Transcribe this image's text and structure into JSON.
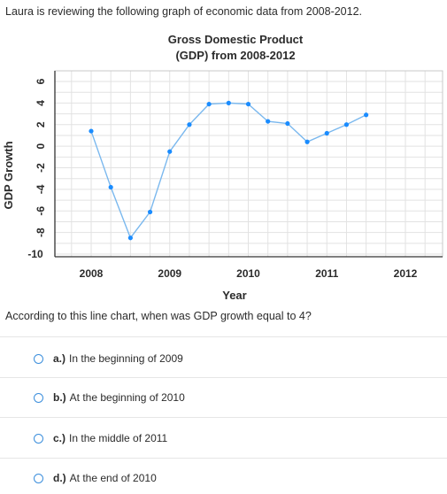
{
  "question": {
    "intro": "Laura is reviewing the following graph of economic data from 2008-2012.",
    "prompt": "According to this line chart, when was GDP growth equal to 4?"
  },
  "chart_data": {
    "type": "line",
    "title_line1": "Gross Domestic Product",
    "title_line2": "(GDP) from 2008-2012",
    "xlabel": "Year",
    "ylabel": "GDP Growth",
    "x_ticks": [
      "2008",
      "2009",
      "2010",
      "2011",
      "2012"
    ],
    "y_ticks": [
      "6",
      "4",
      "2",
      "0",
      "-2",
      "-4",
      "-6",
      "-8",
      "-10"
    ],
    "ylim": [
      -10,
      6.5
    ],
    "xlim": [
      2007.75,
      2012.25
    ],
    "grid": true,
    "line_color": "#7ab8ee",
    "point_color": "#1a8cff",
    "series": [
      {
        "x": [
          2008,
          2008.25,
          2008.5,
          2008.75,
          2009,
          2009.25,
          2009.5,
          2009.75,
          2010,
          2010.25,
          2010.5,
          2010.75,
          2011,
          2011.25,
          2011.5,
          2011.75
        ],
        "y": [
          1.4,
          -3.8,
          -8.5,
          -6.1,
          -0.5,
          2.0,
          3.9,
          4.0,
          3.9,
          2.3,
          2.1,
          0.4,
          1.2,
          2.0,
          2.9,
          null
        ]
      }
    ]
  },
  "options": [
    {
      "letter": "a.)",
      "text": "In the beginning of 2009"
    },
    {
      "letter": "b.)",
      "text": "At the beginning of 2010"
    },
    {
      "letter": "c.)",
      "text": "In the middle of 2011"
    },
    {
      "letter": "d.)",
      "text": "At the end of 2010"
    }
  ],
  "colors": {
    "radio": "#3b8edc"
  }
}
